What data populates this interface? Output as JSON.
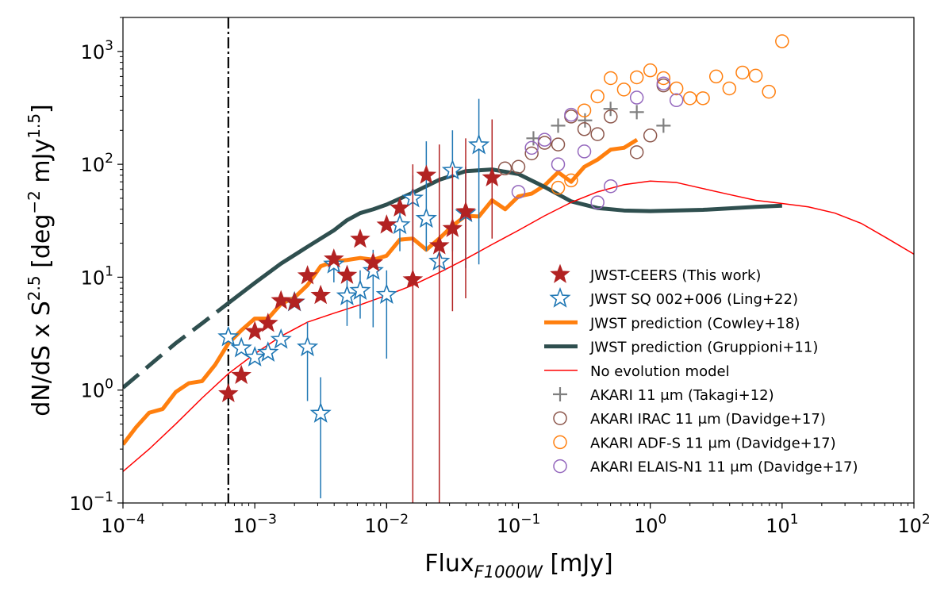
{
  "chart_data": {
    "type": "scatter",
    "title": "",
    "xlabel_main": "Flux",
    "xlabel_sub": "F1000W",
    "xlabel_unit": " [mJy]",
    "ylabel_main": "dN/dS x S",
    "ylabel_exp": "2.5",
    "ylabel_open": " [deg",
    "ylabel_exp2": "−2",
    "ylabel_mid": " mJy",
    "ylabel_exp3": "1.5",
    "ylabel_close": "]",
    "x_scale": "log",
    "y_scale": "log",
    "xlim": [
      0.0001,
      100
    ],
    "ylim": [
      0.1,
      2000
    ],
    "x_ticks": [
      {
        "value": 0.0001,
        "base": "10",
        "exp": "−4"
      },
      {
        "value": 0.001,
        "base": "10",
        "exp": "−3"
      },
      {
        "value": 0.01,
        "base": "10",
        "exp": "−2"
      },
      {
        "value": 0.1,
        "base": "10",
        "exp": "−1"
      },
      {
        "value": 1,
        "base": "10",
        "exp": "0"
      },
      {
        "value": 10,
        "base": "10",
        "exp": "1"
      },
      {
        "value": 100,
        "base": "10",
        "exp": "2"
      }
    ],
    "y_ticks": [
      {
        "value": 0.1,
        "base": "10",
        "exp": "−1"
      },
      {
        "value": 1,
        "base": "10",
        "exp": "0"
      },
      {
        "value": 10,
        "base": "10",
        "exp": "1"
      },
      {
        "value": 100,
        "base": "10",
        "exp": "2"
      },
      {
        "value": 1000,
        "base": "10",
        "exp": "3"
      }
    ],
    "vertical_line": {
      "x": 0.00063,
      "color": "#000000",
      "style": "dash-dot"
    },
    "legend_position": "lower-right",
    "series": [
      {
        "key": "ceers",
        "name": "JWST-CEERS (This work)",
        "kind": "star-filled",
        "color": "#b22222",
        "points": [
          {
            "x": 0.00063,
            "y": 0.93,
            "lo": null,
            "hi": null
          },
          {
            "x": 0.00079,
            "y": 1.35,
            "lo": null,
            "hi": null
          },
          {
            "x": 0.001,
            "y": 3.3,
            "lo": null,
            "hi": null
          },
          {
            "x": 0.00126,
            "y": 3.9,
            "lo": null,
            "hi": null
          },
          {
            "x": 0.00158,
            "y": 6.2,
            "lo": null,
            "hi": null
          },
          {
            "x": 0.002,
            "y": 6.0,
            "lo": null,
            "hi": null
          },
          {
            "x": 0.00251,
            "y": 10.3,
            "lo": null,
            "hi": null
          },
          {
            "x": 0.00316,
            "y": 6.9,
            "lo": null,
            "hi": null
          },
          {
            "x": 0.00398,
            "y": 14.5,
            "lo": null,
            "hi": null
          },
          {
            "x": 0.00501,
            "y": 10.4,
            "lo": null,
            "hi": null
          },
          {
            "x": 0.0063,
            "y": 21.7,
            "lo": null,
            "hi": null
          },
          {
            "x": 0.0079,
            "y": 13.4,
            "lo": null,
            "hi": null
          },
          {
            "x": 0.01,
            "y": 29.0,
            "lo": null,
            "hi": null
          },
          {
            "x": 0.0126,
            "y": 41.0,
            "lo": null,
            "hi": null
          },
          {
            "x": 0.0158,
            "y": 9.5,
            "lo": 0.1,
            "hi": 100
          },
          {
            "x": 0.02,
            "y": 80.0,
            "lo": null,
            "hi": null
          },
          {
            "x": 0.0251,
            "y": 19.0,
            "lo": 0.1,
            "hi": 150
          },
          {
            "x": 0.0316,
            "y": 27.0,
            "lo": 5,
            "hi": 95
          },
          {
            "x": 0.0398,
            "y": 38.0,
            "lo": 6.5,
            "hi": 170
          },
          {
            "x": 0.0631,
            "y": 76.0,
            "lo": 22,
            "hi": 250
          }
        ]
      },
      {
        "key": "ling",
        "name": "JWST SQ 002+006 (Ling+22)",
        "kind": "star-open",
        "color": "#1f77b4",
        "points": [
          {
            "x": 0.00063,
            "y": 2.95,
            "lo": null,
            "hi": null
          },
          {
            "x": 0.00079,
            "y": 2.35,
            "lo": null,
            "hi": null
          },
          {
            "x": 0.001,
            "y": 1.95,
            "lo": null,
            "hi": null
          },
          {
            "x": 0.00126,
            "y": 2.15,
            "lo": null,
            "hi": null
          },
          {
            "x": 0.00158,
            "y": 2.8,
            "lo": null,
            "hi": null
          },
          {
            "x": 0.002,
            "y": 6.0,
            "lo": 5.6,
            "hi": 6.4
          },
          {
            "x": 0.00251,
            "y": 2.4,
            "lo": 0.8,
            "hi": 4.0
          },
          {
            "x": 0.00316,
            "y": 0.62,
            "lo": 0.11,
            "hi": 1.3
          },
          {
            "x": 0.00398,
            "y": 13.0,
            "lo": 9,
            "hi": 17
          },
          {
            "x": 0.00501,
            "y": 6.8,
            "lo": 3.7,
            "hi": 10.5
          },
          {
            "x": 0.0063,
            "y": 7.6,
            "lo": 4.3,
            "hi": 11.5
          },
          {
            "x": 0.0079,
            "y": 11.4,
            "lo": 3.6,
            "hi": 17.5
          },
          {
            "x": 0.01,
            "y": 7.0,
            "lo": 1.9,
            "hi": 11.5
          },
          {
            "x": 0.0126,
            "y": 29.0,
            "lo": 17,
            "hi": 48
          },
          {
            "x": 0.0158,
            "y": 50.0,
            "lo": 19,
            "hi": 80
          },
          {
            "x": 0.02,
            "y": 33.0,
            "lo": 17,
            "hi": 160
          },
          {
            "x": 0.0251,
            "y": 13.8,
            "lo": 6.5,
            "hi": 40
          },
          {
            "x": 0.0316,
            "y": 88.0,
            "lo": 17,
            "hi": 200
          },
          {
            "x": 0.0398,
            "y": 37.0,
            "lo": 12,
            "hi": 95
          },
          {
            "x": 0.0501,
            "y": 148.0,
            "lo": 13,
            "hi": 380
          }
        ]
      },
      {
        "key": "takagi",
        "name": "AKARI 11 μm (Takagi+12)",
        "kind": "plus",
        "color": "#7f7f7f",
        "points": [
          {
            "x": 0.13,
            "y": 170
          },
          {
            "x": 0.2,
            "y": 220
          },
          {
            "x": 0.32,
            "y": 245
          },
          {
            "x": 0.5,
            "y": 310
          },
          {
            "x": 0.79,
            "y": 290
          },
          {
            "x": 1.26,
            "y": 220
          }
        ]
      },
      {
        "key": "irac",
        "name": "AKARI IRAC 11 μm (Davidge+17)",
        "kind": "circle-open",
        "color": "#8c564b",
        "points": [
          {
            "x": 0.079,
            "y": 92
          },
          {
            "x": 0.1,
            "y": 95
          },
          {
            "x": 0.126,
            "y": 125
          },
          {
            "x": 0.158,
            "y": 155
          },
          {
            "x": 0.2,
            "y": 150
          },
          {
            "x": 0.251,
            "y": 265
          },
          {
            "x": 0.316,
            "y": 205
          },
          {
            "x": 0.398,
            "y": 185
          },
          {
            "x": 0.501,
            "y": 265
          },
          {
            "x": 0.79,
            "y": 128
          },
          {
            "x": 1.0,
            "y": 180
          },
          {
            "x": 1.26,
            "y": 500
          }
        ]
      },
      {
        "key": "adfs",
        "name": "AKARI ADF-S 11 μm (Davidge+17)",
        "kind": "circle-open",
        "color": "#ff7f0e",
        "points": [
          {
            "x": 0.2,
            "y": 62
          },
          {
            "x": 0.251,
            "y": 72
          },
          {
            "x": 0.316,
            "y": 300
          },
          {
            "x": 0.398,
            "y": 400
          },
          {
            "x": 0.501,
            "y": 580
          },
          {
            "x": 0.631,
            "y": 460
          },
          {
            "x": 0.79,
            "y": 590
          },
          {
            "x": 1.0,
            "y": 680
          },
          {
            "x": 1.26,
            "y": 580
          },
          {
            "x": 1.58,
            "y": 470
          },
          {
            "x": 2.0,
            "y": 385
          },
          {
            "x": 2.51,
            "y": 385
          },
          {
            "x": 3.16,
            "y": 600
          },
          {
            "x": 3.98,
            "y": 470
          },
          {
            "x": 5.01,
            "y": 650
          },
          {
            "x": 6.31,
            "y": 610
          },
          {
            "x": 7.94,
            "y": 440
          },
          {
            "x": 10.0,
            "y": 1230
          }
        ]
      },
      {
        "key": "elais",
        "name": "AKARI ELAIS-N1 11 μm (Davidge+17)",
        "kind": "circle-open",
        "color": "#9467bd",
        "points": [
          {
            "x": 0.1,
            "y": 57
          },
          {
            "x": 0.126,
            "y": 140
          },
          {
            "x": 0.158,
            "y": 165
          },
          {
            "x": 0.2,
            "y": 100
          },
          {
            "x": 0.251,
            "y": 275
          },
          {
            "x": 0.316,
            "y": 130
          },
          {
            "x": 0.398,
            "y": 46
          },
          {
            "x": 0.501,
            "y": 64
          },
          {
            "x": 0.79,
            "y": 390
          },
          {
            "x": 1.26,
            "y": 520
          },
          {
            "x": 1.58,
            "y": 370
          }
        ]
      }
    ],
    "lines": [
      {
        "key": "cowley",
        "name": "JWST prediction (Cowley+18)",
        "color": "#ff7f0e",
        "style": "solid-thick",
        "points": [
          [
            0.0001,
            0.33
          ],
          [
            0.000126,
            0.47
          ],
          [
            0.000158,
            0.63
          ],
          [
            0.0002,
            0.68
          ],
          [
            0.000251,
            0.96
          ],
          [
            0.000316,
            1.15
          ],
          [
            0.000398,
            1.2
          ],
          [
            0.000501,
            1.68
          ],
          [
            0.000631,
            2.6
          ],
          [
            0.000794,
            3.4
          ],
          [
            0.001,
            4.3
          ],
          [
            0.00126,
            4.3
          ],
          [
            0.00158,
            5.8
          ],
          [
            0.002,
            6.6
          ],
          [
            0.00251,
            8.5
          ],
          [
            0.00316,
            12.5
          ],
          [
            0.00398,
            13.8
          ],
          [
            0.00501,
            14.2
          ],
          [
            0.00631,
            14.8
          ],
          [
            0.00794,
            14.3
          ],
          [
            0.01,
            15.5
          ],
          [
            0.0126,
            21.5
          ],
          [
            0.0158,
            22.0
          ],
          [
            0.02,
            17.5
          ],
          [
            0.0251,
            22.0
          ],
          [
            0.0316,
            28.5
          ],
          [
            0.0398,
            35.0
          ],
          [
            0.0501,
            34.5
          ],
          [
            0.0631,
            48.0
          ],
          [
            0.0794,
            40.0
          ],
          [
            0.1,
            52.0
          ],
          [
            0.126,
            55.0
          ],
          [
            0.158,
            65.0
          ],
          [
            0.2,
            85.0
          ],
          [
            0.251,
            70.0
          ],
          [
            0.316,
            95.0
          ],
          [
            0.398,
            110.0
          ],
          [
            0.501,
            135.0
          ],
          [
            0.631,
            140.0
          ],
          [
            0.794,
            165.0
          ]
        ]
      },
      {
        "key": "gruppioni",
        "name": "JWST prediction (Gruppioni+11)",
        "color": "#2f4f4f",
        "style": "solid-thick",
        "points": [
          [
            0.0001,
            1.05
          ],
          [
            0.000158,
            1.65
          ],
          [
            0.000251,
            2.6
          ],
          [
            0.000398,
            3.9
          ],
          [
            0.000631,
            5.9
          ],
          [
            0.001,
            8.9
          ],
          [
            0.00158,
            13.2
          ],
          [
            0.00251,
            18.6
          ],
          [
            0.00398,
            26.0
          ],
          [
            0.00501,
            32.0
          ],
          [
            0.00631,
            37.0
          ],
          [
            0.00794,
            40.0
          ],
          [
            0.01,
            44.0
          ],
          [
            0.0158,
            56.0
          ],
          [
            0.0251,
            73.0
          ],
          [
            0.0398,
            87.0
          ],
          [
            0.0631,
            90.0
          ],
          [
            0.1,
            82.0
          ],
          [
            0.158,
            63.0
          ],
          [
            0.251,
            47.0
          ],
          [
            0.398,
            41.0
          ],
          [
            0.631,
            39.0
          ],
          [
            1.0,
            38.5
          ],
          [
            2.51,
            39.5
          ],
          [
            6.31,
            42.0
          ],
          [
            10.0,
            43.0
          ]
        ]
      },
      {
        "key": "noevo",
        "name": "No evolution model",
        "color": "#ff0000",
        "style": "solid-thin",
        "points": [
          [
            0.0001,
            0.19
          ],
          [
            0.000158,
            0.3
          ],
          [
            0.000251,
            0.5
          ],
          [
            0.000398,
            0.85
          ],
          [
            0.000631,
            1.4
          ],
          [
            0.001,
            2.1
          ],
          [
            0.00158,
            3.0
          ],
          [
            0.00251,
            4.0
          ],
          [
            0.00398,
            4.8
          ],
          [
            0.00631,
            5.7
          ],
          [
            0.01,
            6.9
          ],
          [
            0.0158,
            8.5
          ],
          [
            0.0251,
            11.0
          ],
          [
            0.0398,
            14.5
          ],
          [
            0.0631,
            19.5
          ],
          [
            0.1,
            26.0
          ],
          [
            0.158,
            35.0
          ],
          [
            0.251,
            46.0
          ],
          [
            0.398,
            57.0
          ],
          [
            0.631,
            66.0
          ],
          [
            1.0,
            71.0
          ],
          [
            1.58,
            69.0
          ],
          [
            2.51,
            61.0
          ],
          [
            3.98,
            54.0
          ],
          [
            6.31,
            48.0
          ],
          [
            10.0,
            45.0
          ],
          [
            15.8,
            42.0
          ],
          [
            25.1,
            37.0
          ],
          [
            39.8,
            30.0
          ],
          [
            63.1,
            22.0
          ],
          [
            100,
            16.0
          ]
        ]
      }
    ],
    "legend": [
      {
        "series": "ceers",
        "label": "JWST-CEERS (This work)"
      },
      {
        "series": "ling",
        "label": "JWST SQ 002+006 (Ling+22)"
      },
      {
        "series": "cowley",
        "label": "JWST prediction (Cowley+18)"
      },
      {
        "series": "gruppioni",
        "label": "JWST prediction (Gruppioni+11)"
      },
      {
        "series": "noevo",
        "label": "No evolution model"
      },
      {
        "series": "takagi",
        "label": "AKARI 11 μm (Takagi+12)"
      },
      {
        "series": "irac",
        "label": "AKARI IRAC 11 μm (Davidge+17)"
      },
      {
        "series": "adfs",
        "label": "AKARI ADF-S 11 μm (Davidge+17)"
      },
      {
        "series": "elais",
        "label": "AKARI ELAIS-N1 11 μm (Davidge+17)"
      }
    ]
  }
}
